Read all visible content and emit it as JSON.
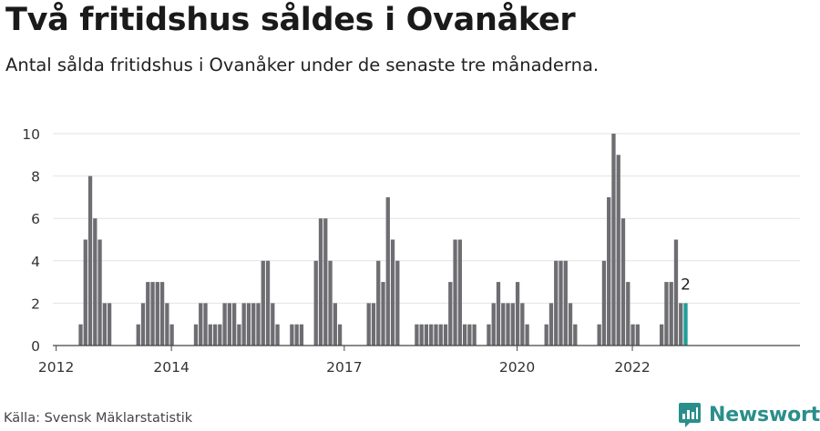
{
  "title": "Två fritidshus såldes i Ovanåker",
  "subtitle": "Antal sålda fritidshus i Ovanåker under de senaste tre månaderna.",
  "source": "Källa: Svensk Mäklarstatistik",
  "brand": "Newsworthy",
  "colors": {
    "bar": "#6e6d72",
    "highlight": "#1f9e97",
    "grid": "#e2e2e2",
    "axis": "#444444",
    "brand": "#2a8f8a"
  },
  "chart_data": {
    "type": "bar",
    "ylim": [
      0,
      10
    ],
    "yticks": [
      0,
      2,
      4,
      6,
      8,
      10
    ],
    "grid": true,
    "xtick_labels": [
      {
        "label": "2012",
        "index": 0
      },
      {
        "label": "2014",
        "index": 24
      },
      {
        "label": "2017",
        "index": 60
      },
      {
        "label": "2020",
        "index": 96
      },
      {
        "label": "2022",
        "index": 120
      }
    ],
    "values": [
      0,
      0,
      0,
      0,
      0,
      1,
      5,
      8,
      6,
      5,
      2,
      2,
      0,
      0,
      0,
      0,
      0,
      1,
      2,
      3,
      3,
      3,
      3,
      2,
      1,
      0,
      0,
      0,
      0,
      1,
      2,
      2,
      1,
      1,
      1,
      2,
      2,
      2,
      1,
      2,
      2,
      2,
      2,
      4,
      4,
      2,
      1,
      0,
      0,
      1,
      1,
      1,
      0,
      0,
      4,
      6,
      6,
      4,
      2,
      1,
      0,
      0,
      0,
      0,
      0,
      2,
      2,
      4,
      3,
      7,
      5,
      4,
      0,
      0,
      0,
      1,
      1,
      1,
      1,
      1,
      1,
      1,
      3,
      5,
      5,
      1,
      1,
      1,
      0,
      0,
      1,
      2,
      3,
      2,
      2,
      2,
      3,
      2,
      1,
      0,
      0,
      0,
      1,
      2,
      4,
      4,
      4,
      2,
      1,
      0,
      0,
      0,
      0,
      1,
      4,
      7,
      10,
      9,
      6,
      3,
      1,
      1,
      0,
      0,
      0,
      0,
      1,
      3,
      3,
      5,
      2,
      2
    ],
    "highlight_last": true,
    "annotations": [
      {
        "index": 131,
        "text": "2"
      }
    ]
  }
}
